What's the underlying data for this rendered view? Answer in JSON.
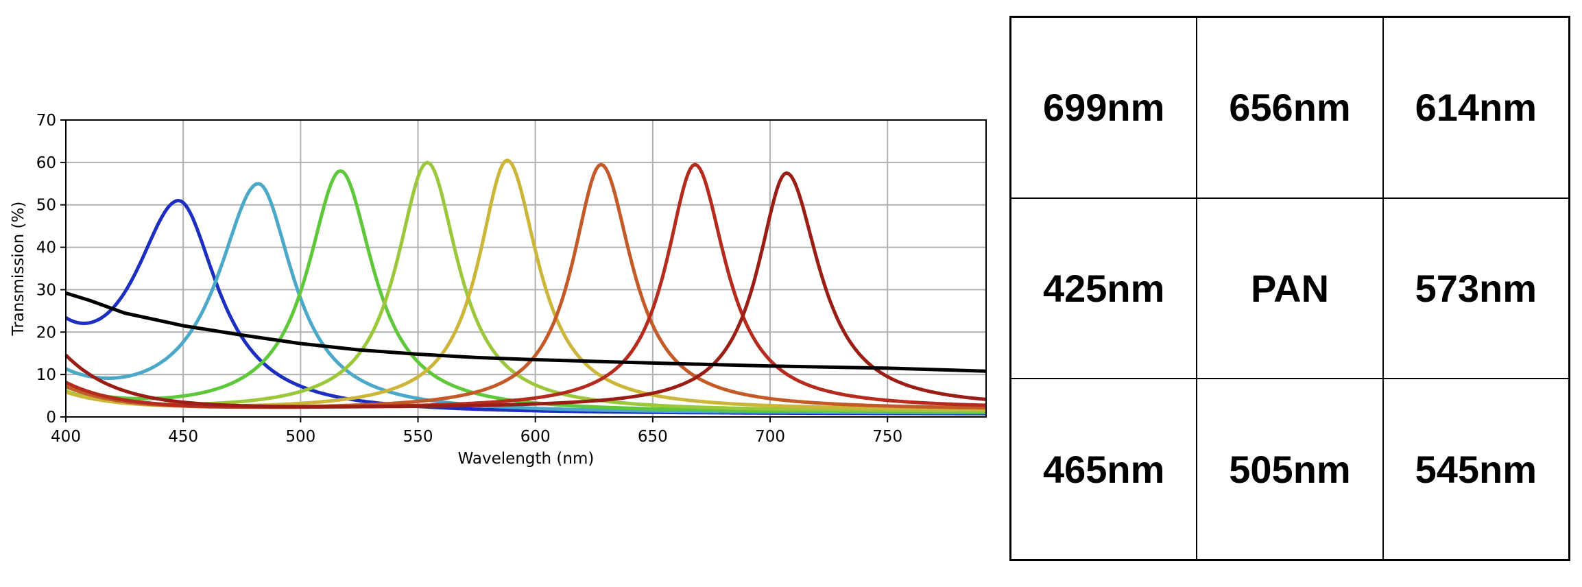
{
  "chart_data": {
    "type": "line",
    "xlabel": "Wavelength (nm)",
    "ylabel": "Transmission (%)",
    "xlim": [
      400,
      792
    ],
    "ylim": [
      0,
      70
    ],
    "xticks": [
      400,
      450,
      500,
      550,
      600,
      650,
      700,
      750
    ],
    "yticks": [
      0,
      10,
      20,
      30,
      40,
      50,
      60,
      70
    ],
    "grid": true,
    "legend": "none",
    "series": [
      {
        "color": "#1c2fc0",
        "peak": 448,
        "height": 51,
        "hw_left": 24,
        "hw_right": 20,
        "base_start": 16.5,
        "base_end": 0.6
      },
      {
        "color": "#4ba8c8",
        "peak": 482,
        "height": 55,
        "hw_left": 21,
        "hw_right": 18,
        "base_start": 8.5,
        "base_end": 0.8
      },
      {
        "color": "#5ec83a",
        "peak": 517,
        "height": 58,
        "hw_left": 17,
        "hw_right": 17,
        "base_start": 6,
        "base_end": 1.0
      },
      {
        "color": "#9ac83a",
        "peak": 554,
        "height": 60,
        "hw_left": 16,
        "hw_right": 16,
        "base_start": 5.5,
        "base_end": 1.2
      },
      {
        "color": "#ccb63a",
        "peak": 588,
        "height": 60.5,
        "hw_left": 15,
        "hw_right": 16,
        "base_start": 5.5,
        "base_end": 1.5
      },
      {
        "color": "#c45a28",
        "peak": 628,
        "height": 59.5,
        "hw_left": 15,
        "hw_right": 16,
        "base_start": 7,
        "base_end": 1.6
      },
      {
        "color": "#b52c1e",
        "peak": 668,
        "height": 59.5,
        "hw_left": 15,
        "hw_right": 16,
        "base_start": 8,
        "base_end": 1.8
      },
      {
        "color": "#9a1e16",
        "peak": 707,
        "height": 57.5,
        "hw_left": 15,
        "hw_right": 17,
        "base_start": 14.5,
        "base_end": 2.0
      },
      {
        "color": "#000000",
        "x": [
          400,
          410,
          425,
          450,
          475,
          500,
          525,
          550,
          575,
          600,
          650,
          700,
          750,
          792
        ],
        "y": [
          29.2,
          27.5,
          24.5,
          21.5,
          19.3,
          17.3,
          15.8,
          14.8,
          14.0,
          13.5,
          12.7,
          12.0,
          11.5,
          10.8
        ]
      }
    ]
  },
  "filter_grid": {
    "cells": [
      "699nm",
      "656nm",
      "614nm",
      "425nm",
      "PAN",
      "573nm",
      "465nm",
      "505nm",
      "545nm"
    ]
  }
}
